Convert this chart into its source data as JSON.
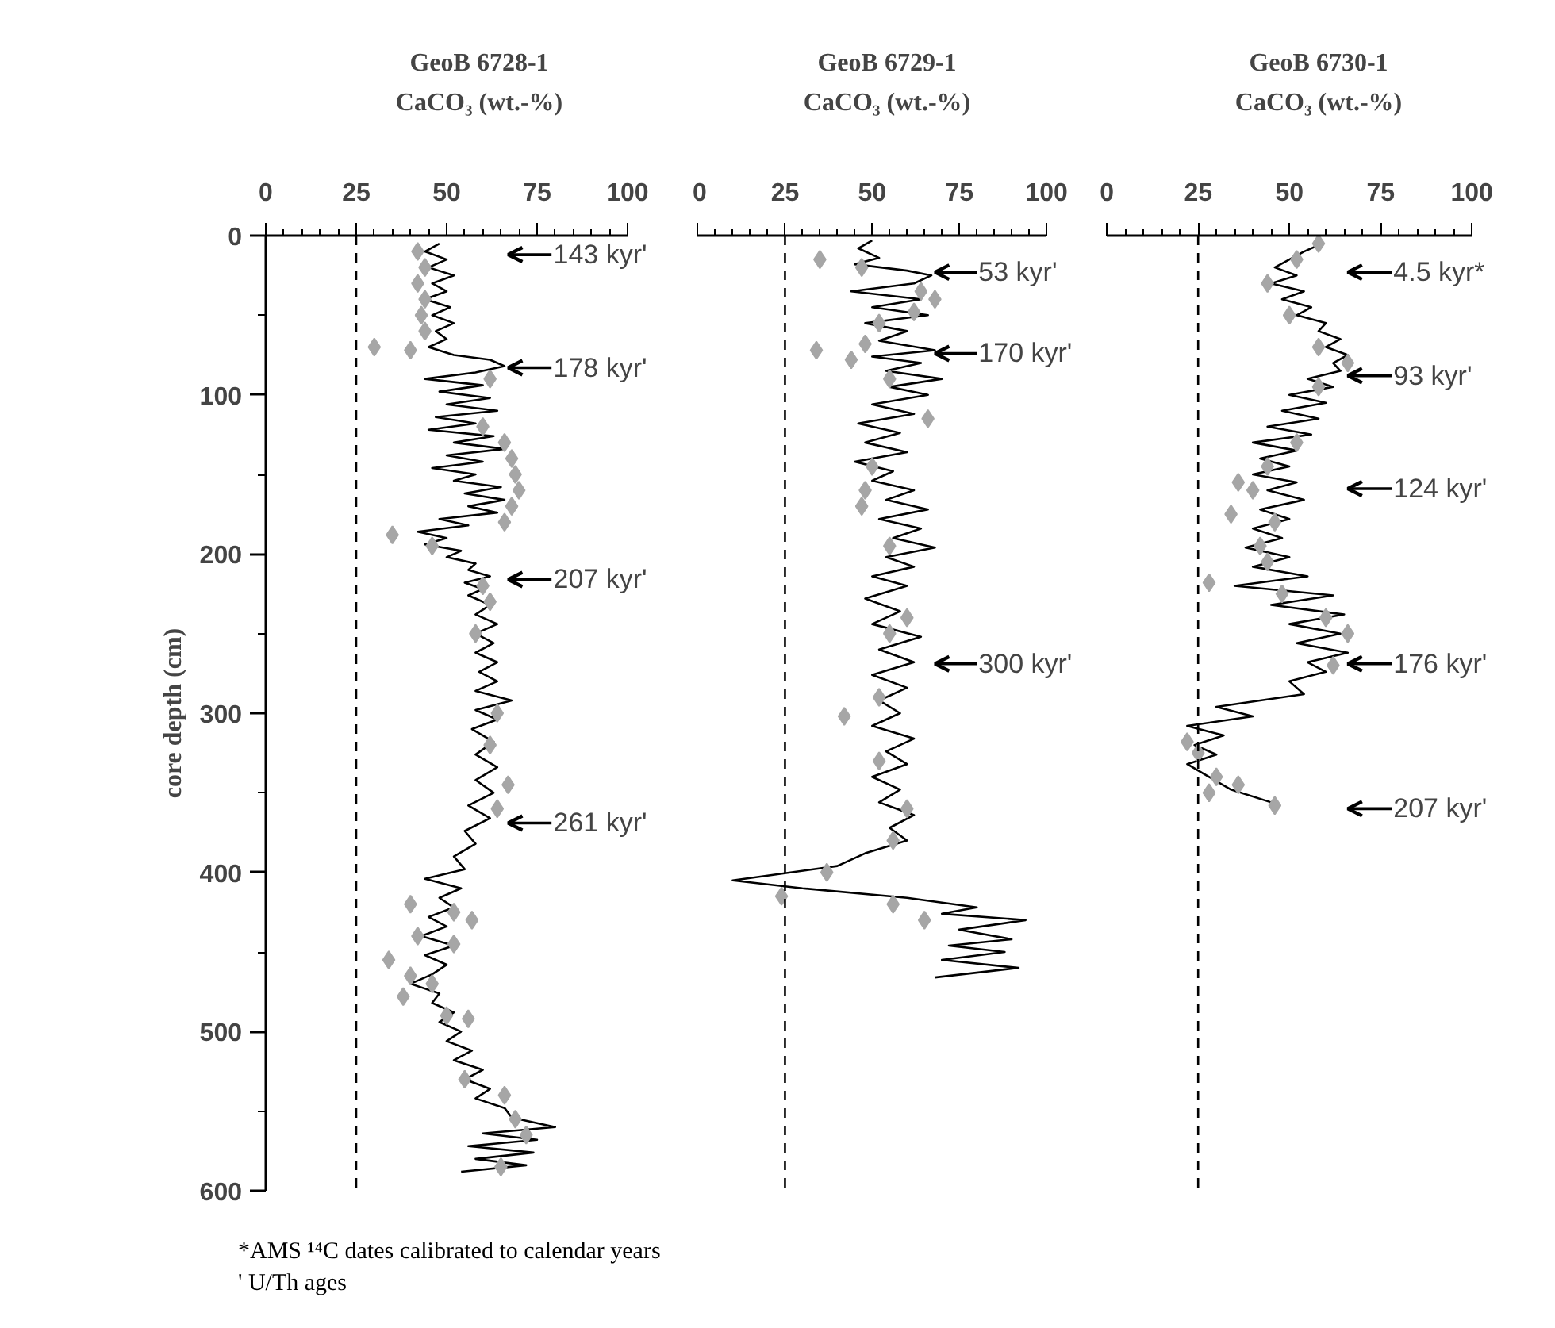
{
  "chart_data": [
    {
      "type": "line",
      "title": "GeoB 6728-1",
      "xlabel": "CaCO₃ (wt.-%)",
      "ylabel": "core depth (cm)",
      "xlim": [
        0,
        100
      ],
      "xticks": [
        0,
        25,
        50,
        75,
        100
      ],
      "ylim": [
        600,
        0
      ],
      "yticks": [
        0,
        100,
        200,
        300,
        400,
        500,
        600
      ],
      "grid": false,
      "series": [
        {
          "color": "#000000",
          "line_style": "solid",
          "marker": "none",
          "x": [
            48,
            44,
            50,
            45,
            52,
            46,
            50,
            44,
            51,
            46,
            52,
            47,
            50,
            45,
            52,
            62,
            66,
            58,
            44,
            60,
            48,
            62,
            50,
            64,
            47,
            58,
            45,
            63,
            52,
            66,
            50,
            60,
            46,
            58,
            52,
            65,
            55,
            66,
            56,
            64,
            48,
            56,
            42,
            50,
            44,
            54,
            50,
            58,
            56,
            62,
            55,
            60,
            56,
            62,
            58,
            64,
            58,
            63,
            58,
            64,
            59,
            64,
            58,
            68,
            58,
            64,
            57,
            63,
            58,
            64,
            58,
            63,
            56,
            62,
            55,
            58,
            52,
            55,
            44,
            54,
            48,
            52,
            45,
            50,
            43,
            52,
            44,
            50,
            46,
            40,
            48,
            46,
            52,
            48,
            54,
            50,
            57,
            52,
            60,
            55,
            62,
            58,
            66,
            68,
            80,
            60,
            75,
            56,
            74,
            58,
            72,
            54
          ],
          "values": [
            5,
            10,
            15,
            20,
            25,
            30,
            35,
            40,
            45,
            50,
            55,
            60,
            65,
            70,
            75,
            78,
            82,
            86,
            90,
            94,
            98,
            102,
            106,
            110,
            114,
            118,
            122,
            126,
            130,
            134,
            138,
            142,
            146,
            150,
            154,
            158,
            162,
            166,
            170,
            174,
            178,
            182,
            186,
            190,
            194,
            198,
            202,
            206,
            210,
            214,
            218,
            222,
            226,
            232,
            238,
            244,
            250,
            256,
            262,
            268,
            274,
            280,
            286,
            292,
            298,
            304,
            310,
            318,
            326,
            334,
            342,
            350,
            358,
            366,
            374,
            382,
            390,
            398,
            404,
            410,
            416,
            422,
            428,
            434,
            440,
            446,
            452,
            458,
            464,
            470,
            476,
            482,
            488,
            494,
            500,
            506,
            512,
            518,
            524,
            530,
            536,
            542,
            548,
            554,
            560,
            564,
            568,
            572,
            576,
            580,
            584,
            588
          ]
        },
        {
          "type": "scatter",
          "color": "#a6a6a6",
          "marker": "diamond",
          "x": [
            42,
            44,
            42,
            44,
            43,
            44,
            30,
            40,
            62,
            60,
            66,
            68,
            69,
            70,
            68,
            66,
            35,
            46,
            60,
            62,
            58,
            64,
            62,
            67,
            64,
            40,
            52,
            57,
            42,
            52,
            34,
            40,
            46,
            50,
            38,
            56,
            55,
            66,
            69,
            72,
            65
          ],
          "values": [
            10,
            20,
            30,
            40,
            50,
            60,
            70,
            72,
            90,
            120,
            130,
            140,
            150,
            160,
            170,
            180,
            188,
            195,
            220,
            230,
            250,
            300,
            320,
            345,
            360,
            420,
            425,
            430,
            440,
            445,
            455,
            465,
            470,
            490,
            478,
            492,
            530,
            540,
            555,
            565,
            585
          ]
        }
      ],
      "ref_lines": [
        {
          "axis": "x",
          "value": 25,
          "color": "#000000",
          "line_style": "dashed"
        }
      ],
      "annotations": [
        "143 kyr'",
        "178 kyr'",
        "207 kyr'",
        "261 kyr'",
        "*AMS ¹⁴C dates calibrated to calendar years",
        "' U/Th ages"
      ]
    },
    {
      "type": "line",
      "title": "GeoB 6729-1",
      "xlabel": "CaCO₃ (wt.-%)",
      "tick_labels": "x",
      "xlim": [
        0,
        100
      ],
      "xticks": [
        0,
        25,
        50,
        75,
        100
      ],
      "ylim": [
        600,
        0
      ],
      "yticks": [
        0,
        100,
        200,
        300,
        400,
        500,
        600
      ],
      "grid": false,
      "series": [
        {
          "color": "#000000",
          "line_style": "solid",
          "marker": "none",
          "x": [
            50,
            46,
            52,
            45,
            60,
            67,
            62,
            44,
            64,
            50,
            66,
            48,
            60,
            52,
            68,
            50,
            64,
            54,
            70,
            55,
            66,
            50,
            62,
            46,
            58,
            48,
            60,
            45,
            56,
            50,
            62,
            54,
            66,
            52,
            64,
            56,
            68,
            54,
            62,
            50,
            60,
            48,
            58,
            50,
            64,
            52,
            62,
            50,
            60,
            52,
            58,
            50,
            62,
            54,
            60,
            50,
            58,
            52,
            62,
            55,
            60,
            48,
            40,
            20,
            10,
            30,
            60,
            80,
            70,
            94,
            75,
            90,
            72,
            88,
            70,
            92,
            68
          ],
          "values": [
            3,
            8,
            14,
            18,
            22,
            25,
            30,
            35,
            40,
            45,
            50,
            55,
            60,
            66,
            72,
            76,
            80,
            85,
            90,
            95,
            100,
            106,
            112,
            118,
            124,
            130,
            136,
            142,
            148,
            154,
            160,
            166,
            172,
            178,
            184,
            190,
            196,
            202,
            208,
            214,
            220,
            228,
            236,
            244,
            252,
            260,
            268,
            276,
            284,
            292,
            300,
            308,
            316,
            324,
            332,
            340,
            348,
            356,
            364,
            372,
            380,
            388,
            396,
            402,
            405,
            410,
            416,
            422,
            426,
            430,
            436,
            442,
            446,
            450,
            455,
            460,
            466
          ]
        },
        {
          "type": "scatter",
          "color": "#a6a6a6",
          "marker": "diamond",
          "x": [
            35,
            47,
            64,
            68,
            62,
            52,
            48,
            34,
            44,
            55,
            66,
            50,
            48,
            47,
            55,
            60,
            55,
            52,
            42,
            52,
            60,
            56,
            37,
            24,
            56,
            65
          ],
          "values": [
            15,
            20,
            35,
            40,
            48,
            55,
            68,
            72,
            78,
            90,
            115,
            145,
            160,
            170,
            195,
            240,
            250,
            290,
            302,
            330,
            360,
            380,
            400,
            415,
            420,
            430
          ]
        }
      ],
      "ref_lines": [
        {
          "axis": "x",
          "value": 25,
          "color": "#000000",
          "line_style": "dashed"
        }
      ],
      "annotations": [
        "53 kyr'",
        "170 kyr'",
        "300 kyr'"
      ]
    },
    {
      "type": "line",
      "title": "GeoB 6730-1",
      "xlabel": "CaCO₃ (wt.-%)",
      "tick_labels": "x",
      "xlim": [
        0,
        100
      ],
      "xticks": [
        0,
        25,
        50,
        75,
        100
      ],
      "ylim": [
        600,
        0
      ],
      "yticks": [
        0,
        100,
        200,
        300,
        400,
        500,
        600
      ],
      "grid": false,
      "series": [
        {
          "color": "#000000",
          "line_style": "solid",
          "marker": "none",
          "x": [
            59,
            54,
            50,
            46,
            52,
            45,
            54,
            48,
            56,
            52,
            60,
            58,
            64,
            60,
            66,
            62,
            64,
            55,
            62,
            50,
            60,
            48,
            58,
            44,
            56,
            40,
            52,
            42,
            50,
            40,
            52,
            44,
            54,
            42,
            50,
            40,
            48,
            38,
            50,
            40,
            55,
            35,
            62,
            45,
            65,
            50,
            64,
            52,
            66,
            55,
            60,
            50,
            54,
            30,
            40,
            22,
            32,
            24,
            30,
            22,
            28,
            34,
            45
          ],
          "values": [
            5,
            10,
            15,
            20,
            25,
            30,
            35,
            40,
            45,
            50,
            55,
            60,
            65,
            70,
            75,
            80,
            85,
            90,
            95,
            100,
            105,
            110,
            115,
            120,
            125,
            130,
            135,
            140,
            145,
            150,
            155,
            160,
            166,
            172,
            178,
            184,
            190,
            196,
            202,
            208,
            214,
            220,
            226,
            232,
            238,
            244,
            250,
            256,
            262,
            268,
            274,
            280,
            288,
            296,
            302,
            308,
            314,
            320,
            326,
            332,
            340,
            348,
            356
          ]
        },
        {
          "type": "scatter",
          "color": "#a6a6a6",
          "marker": "diamond",
          "x": [
            58,
            52,
            44,
            50,
            58,
            66,
            58,
            52,
            44,
            36,
            40,
            34,
            46,
            42,
            44,
            28,
            48,
            60,
            66,
            62,
            22,
            25,
            30,
            28,
            36,
            46
          ],
          "values": [
            5,
            15,
            30,
            50,
            70,
            80,
            95,
            130,
            145,
            155,
            160,
            175,
            180,
            195,
            205,
            218,
            225,
            240,
            250,
            270,
            318,
            325,
            340,
            350,
            345,
            358
          ]
        }
      ],
      "ref_lines": [
        {
          "axis": "x",
          "value": 25,
          "color": "#000000",
          "line_style": "dashed"
        }
      ],
      "annotations": [
        "4.5 kyr*",
        "93 kyr'",
        "124 kyr'",
        "176 kyr'",
        "207 kyr'"
      ]
    }
  ]
}
